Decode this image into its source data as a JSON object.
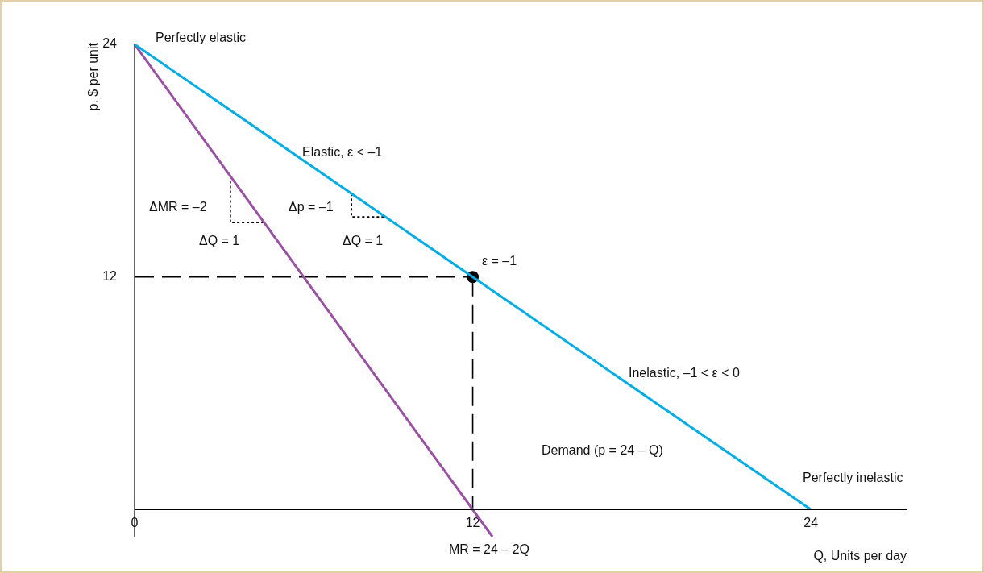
{
  "chart_data": {
    "type": "line",
    "xlabel": "Q, Units per day",
    "ylabel": "p, $ per unit",
    "xlim": [
      0,
      27.4
    ],
    "ylim": [
      -1.4,
      24
    ],
    "xticks": [
      0,
      12,
      24
    ],
    "yticks": [
      12,
      24
    ],
    "grid": false,
    "legend": false,
    "marker": "none",
    "series": [
      {
        "color": "#00aee8",
        "x": [
          0,
          24
        ],
        "values": [
          24,
          0
        ]
      },
      {
        "color": "#9b4fa5",
        "x": [
          0,
          12.7
        ],
        "values": [
          24,
          -1.4
        ]
      },
      {
        "color": "#000000",
        "line_style": "dashed",
        "x": [
          0,
          12
        ],
        "values": [
          12,
          12
        ]
      },
      {
        "color": "#000000",
        "line_style": "dashed",
        "x": [
          12,
          12
        ],
        "values": [
          12,
          0
        ]
      },
      {
        "color": "#000000",
        "line_style": "dotted",
        "x": [
          3.4,
          3.4,
          4.6
        ],
        "values": [
          17.2,
          14.8,
          14.8
        ]
      },
      {
        "color": "#000000",
        "line_style": "dotted",
        "x": [
          7.7,
          7.7,
          8.9
        ],
        "values": [
          16.3,
          15.1,
          15.1
        ]
      },
      {
        "type": "scatter",
        "color": "#000000",
        "marker": "circle",
        "x": [
          12
        ],
        "values": [
          12
        ]
      }
    ],
    "annotations": [
      "Perfectly elastic",
      "Elastic, ε < –1",
      "ΔMR = –2",
      "ΔQ = 1",
      "Δp = –1",
      "ΔQ = 1",
      "ε = –1",
      "Inelastic, –1 < ε < 0",
      "Demand (p = 24 – Q)",
      "Perfectly inelastic",
      "MR = 24 – 2Q"
    ]
  }
}
